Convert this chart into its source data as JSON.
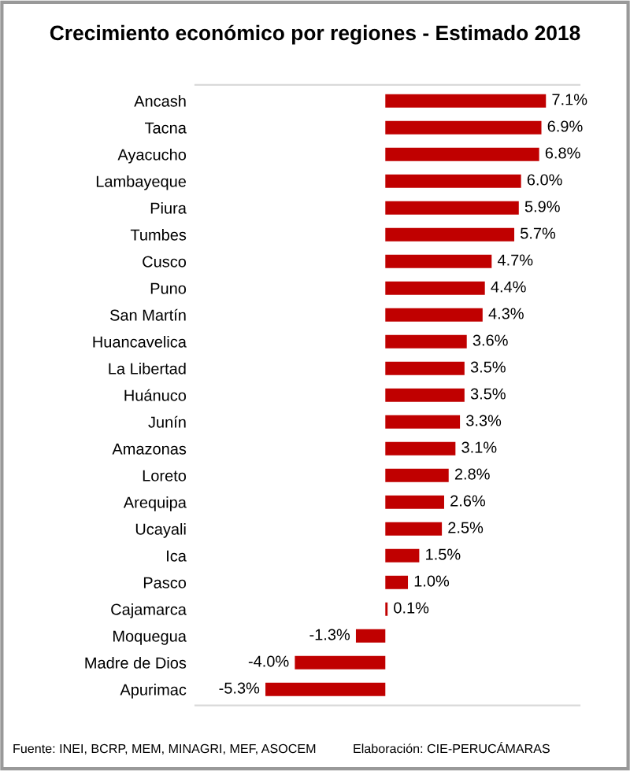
{
  "chart_data": {
    "type": "bar",
    "orientation": "horizontal",
    "title": "Crecimiento económico por regiones - Estimado 2018",
    "categories": [
      "Ancash",
      "Tacna",
      "Ayacucho",
      "Lambayeque",
      "Piura",
      "Tumbes",
      "Cusco",
      "Puno",
      "San Martín",
      "Huancavelica",
      "La Libertad",
      "Huánuco",
      "Junín",
      "Amazonas",
      "Loreto",
      "Arequipa",
      "Ucayali",
      "Ica",
      "Pasco",
      "Cajamarca",
      "Moquegua",
      "Madre de Dios",
      "Apurimac"
    ],
    "values": [
      7.1,
      6.9,
      6.8,
      6.0,
      5.9,
      5.7,
      4.7,
      4.4,
      4.3,
      3.6,
      3.5,
      3.5,
      3.3,
      3.1,
      2.8,
      2.6,
      2.5,
      1.5,
      1.0,
      0.1,
      -1.3,
      -4.0,
      -5.3
    ],
    "value_labels": [
      "7.1%",
      "6.9%",
      "6.8%",
      "6.0%",
      "5.9%",
      "5.7%",
      "4.7%",
      "4.4%",
      "4.3%",
      "3.6%",
      "3.5%",
      "3.5%",
      "3.3%",
      "3.1%",
      "2.8%",
      "2.6%",
      "2.5%",
      "1.5%",
      "1.0%",
      "0.1%",
      "-1.3%",
      "-4.0%",
      "-5.3%"
    ],
    "color": "#c00000",
    "annotations": [
      "Fuente: INEI, BCRP, MEM, MINAGRI, MEF, ASOCEM",
      "Elaboración: CIE-PERUCÁMARAS"
    ],
    "grid": false,
    "legend": false
  }
}
